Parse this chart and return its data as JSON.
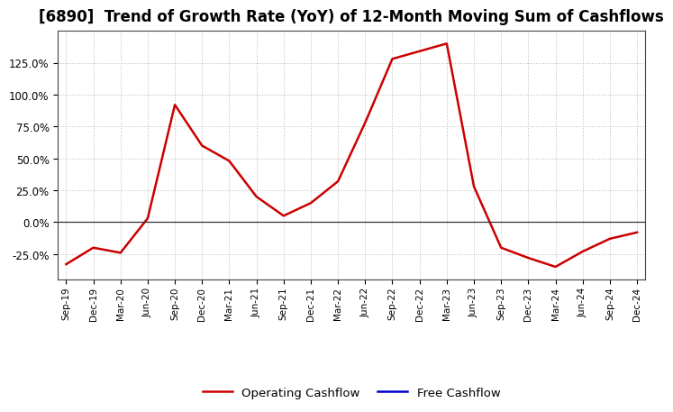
{
  "title": "[6890]  Trend of Growth Rate (YoY) of 12-Month Moving Sum of Cashflows",
  "x_labels": [
    "Sep-19",
    "Dec-19",
    "Mar-20",
    "Jun-20",
    "Sep-20",
    "Dec-20",
    "Mar-21",
    "Jun-21",
    "Sep-21",
    "Dec-21",
    "Mar-22",
    "Jun-22",
    "Sep-22",
    "Dec-22",
    "Mar-23",
    "Jun-23",
    "Sep-23",
    "Dec-23",
    "Mar-24",
    "Jun-24",
    "Sep-24",
    "Dec-24"
  ],
  "operating_cashflow": [
    -33,
    -20,
    -24,
    3,
    92,
    60,
    48,
    20,
    5,
    15,
    32,
    78,
    128,
    134,
    140,
    28,
    -20,
    -28,
    -35,
    -23,
    -13,
    -8
  ],
  "op_color": "#cc0000",
  "free_color": "#0000cc",
  "background_color": "#ffffff",
  "plot_bg_color": "#ffffff",
  "grid_color": "#bbbbbb",
  "ylim": [
    -45,
    150
  ],
  "yticks": [
    -25.0,
    0.0,
    25.0,
    50.0,
    75.0,
    100.0,
    125.0
  ],
  "legend_op": "Operating Cashflow",
  "legend_free": "Free Cashflow",
  "title_fontsize": 12,
  "title_fontweight": "bold"
}
